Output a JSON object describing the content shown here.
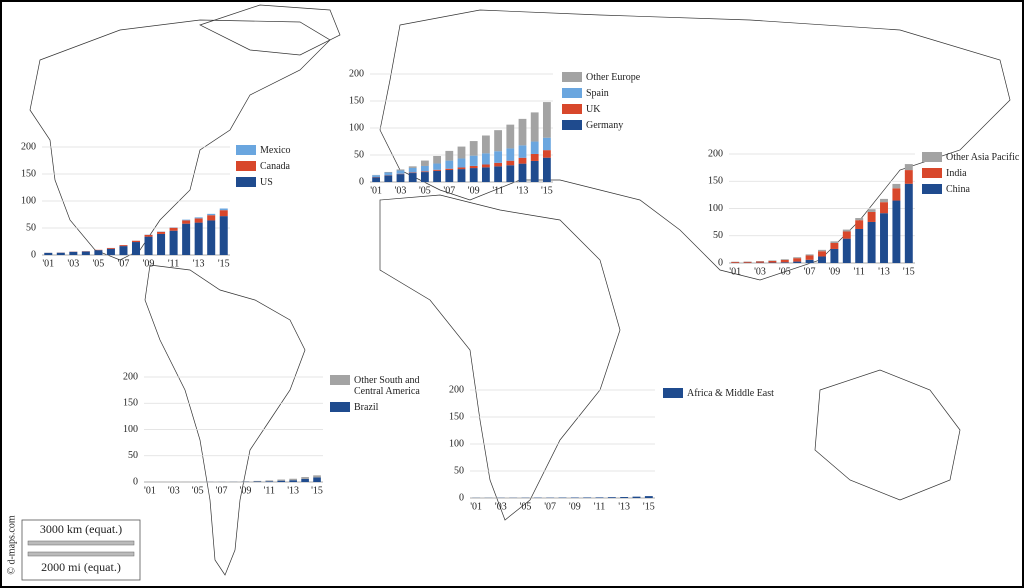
{
  "chart_data": [
    {
      "type": "bar",
      "stacked": true,
      "grid": true,
      "legend": "right",
      "categories": [
        "'01",
        null,
        "'03",
        null,
        "'05",
        null,
        "'07",
        null,
        "'09",
        null,
        "'11",
        null,
        "'13",
        null,
        "'15"
      ],
      "ylim": [
        0,
        200
      ],
      "yticks": [
        0,
        50,
        100,
        150,
        200
      ],
      "series": [
        {
          "name": "US",
          "color": "#1f4b8e",
          "values": [
            4,
            4.3,
            6,
            6.5,
            9,
            11.5,
            16.5,
            24,
            34,
            39,
            45,
            58,
            60,
            64,
            72
          ]
        },
        {
          "name": "Canada",
          "color": "#d8472b",
          "values": [
            0.1,
            0.2,
            0.3,
            0.4,
            0.6,
            1.5,
            1.8,
            2.4,
            3.3,
            4,
            5.5,
            6.2,
            7.8,
            9.7,
            11
          ]
        },
        {
          "name": "Mexico",
          "color": "#6aa6df",
          "values": [
            0,
            0,
            0,
            0,
            0,
            0.1,
            0.1,
            0.1,
            0.4,
            0.5,
            0.6,
            1.3,
            1.9,
            2.5,
            3.1
          ]
        }
      ]
    },
    {
      "type": "bar",
      "stacked": true,
      "grid": true,
      "legend": "right",
      "categories": [
        "'01",
        null,
        "'03",
        null,
        "'05",
        null,
        "'07",
        null,
        "'09",
        null,
        "'11",
        null,
        "'13",
        null,
        "'15"
      ],
      "ylim": [
        0,
        200
      ],
      "yticks": [
        0,
        50,
        100,
        150,
        200
      ],
      "series": [
        {
          "name": "Germany",
          "color": "#1f4b8e",
          "values": [
            8.8,
            12,
            14.6,
            16.6,
            18.4,
            20.6,
            22.2,
            23.9,
            25.8,
            27.2,
            29,
            31,
            34,
            39,
            45
          ]
        },
        {
          "name": "UK",
          "color": "#d8472b",
          "values": [
            0.5,
            0.6,
            0.7,
            0.9,
            1.3,
            2,
            2.4,
            3,
            4,
            5.2,
            6.5,
            8.4,
            10.9,
            12.9,
            14
          ]
        },
        {
          "name": "Spain",
          "color": "#6aa6df",
          "values": [
            3.3,
            5,
            6,
            8.5,
            10,
            11.6,
            15,
            16.7,
            19,
            20.7,
            21.5,
            22.8,
            23,
            23,
            23
          ]
        },
        {
          "name": "Other Europe",
          "color": "#a3a3a3",
          "values": [
            0.5,
            1,
            2,
            3,
            10,
            14,
            18,
            22,
            27,
            33,
            39,
            44,
            49,
            54,
            66
          ]
        }
      ]
    },
    {
      "type": "bar",
      "stacked": true,
      "grid": true,
      "legend": "right",
      "categories": [
        "'01",
        null,
        "'03",
        null,
        "'05",
        null,
        "'07",
        null,
        "'09",
        null,
        "'11",
        null,
        "'13",
        null,
        "'15"
      ],
      "ylim": [
        0,
        200
      ],
      "yticks": [
        0,
        50,
        100,
        150,
        200
      ],
      "series": [
        {
          "name": "China",
          "color": "#1f4b8e",
          "values": [
            0.4,
            0.5,
            0.6,
            0.8,
            1.3,
            2.6,
            5.9,
            12,
            25.8,
            44.7,
            62.4,
            75.3,
            91.4,
            114.6,
            145.4
          ]
        },
        {
          "name": "India",
          "color": "#d8472b",
          "values": [
            1.5,
            1.7,
            2.1,
            3,
            4.4,
            6.3,
            7.9,
            9.6,
            10.9,
            13.1,
            16.1,
            18.4,
            20.2,
            22.5,
            25.1
          ]
        },
        {
          "name": "Other Asia Pacific",
          "color": "#a3a3a3",
          "values": [
            0.5,
            0.6,
            0.8,
            1,
            1.3,
            1.7,
            2,
            2.5,
            3,
            3.5,
            4,
            5,
            6,
            8,
            11
          ]
        }
      ]
    },
    {
      "type": "bar",
      "stacked": true,
      "grid": true,
      "legend": "right",
      "categories": [
        "'01",
        null,
        "'03",
        null,
        "'05",
        null,
        "'07",
        null,
        "'09",
        null,
        "'11",
        null,
        "'13",
        null,
        "'15"
      ],
      "ylim": [
        0,
        200
      ],
      "yticks": [
        0,
        50,
        100,
        150,
        200
      ],
      "series": [
        {
          "name": "Brazil",
          "color": "#1f4b8e",
          "values": [
            0,
            0,
            0,
            0,
            0,
            0.2,
            0.2,
            0.3,
            0.6,
            0.9,
            1.4,
            2.5,
            3.4,
            5.9,
            8.7
          ]
        },
        {
          "name": "Other South and Central America",
          "color": "#a3a3a3",
          "values": [
            0.2,
            0.2,
            0.2,
            0.2,
            0.3,
            0.3,
            0.4,
            0.4,
            0.7,
            1.2,
            1.6,
            2.2,
            2.8,
            3.5,
            4
          ]
        }
      ]
    },
    {
      "type": "bar",
      "stacked": true,
      "grid": true,
      "legend": "right",
      "categories": [
        "'01",
        null,
        "'03",
        null,
        "'05",
        null,
        "'07",
        null,
        "'09",
        null,
        "'11",
        null,
        "'13",
        null,
        "'15"
      ],
      "ylim": [
        0,
        200
      ],
      "yticks": [
        0,
        50,
        100,
        150,
        200
      ],
      "series": [
        {
          "name": "Africa & Middle East",
          "color": "#1f4b8e",
          "values": [
            0.3,
            0.3,
            0.4,
            0.4,
            0.5,
            0.6,
            0.6,
            0.8,
            0.9,
            1,
            1.1,
            1.5,
            1.8,
            2.5,
            3.5
          ]
        }
      ]
    }
  ],
  "map": {
    "credit": "© d-maps.com",
    "scale_km": "3000 km (equat.)",
    "scale_mi": "2000 mi (equat.)"
  }
}
